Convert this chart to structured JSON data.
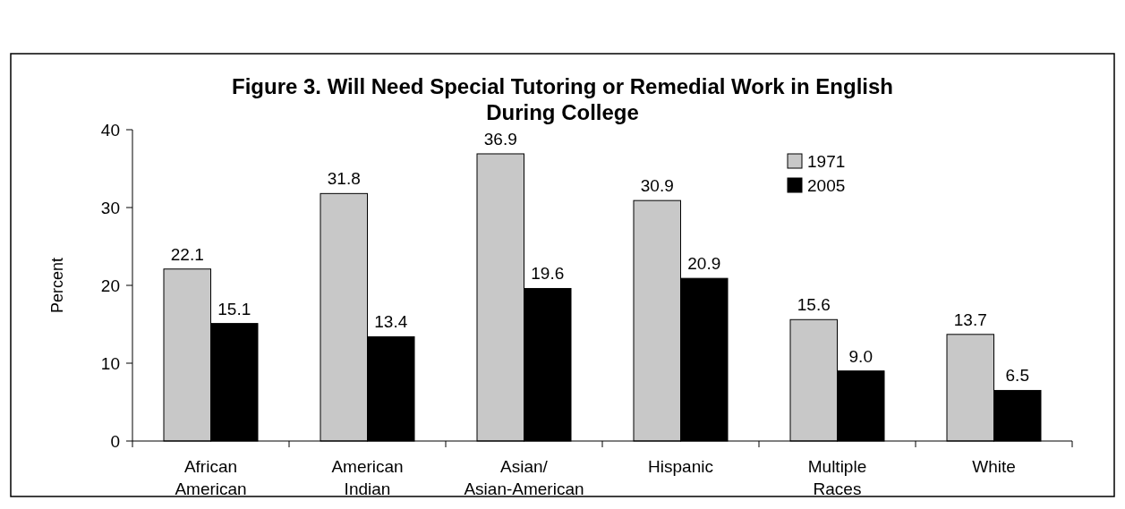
{
  "chart_data": {
    "type": "bar",
    "title": "Figure 3. Will Need Special Tutoring or Remedial Work in English During College",
    "ylabel": "Percent",
    "categories": [
      "African American",
      "American Indian",
      "Asian/Asian-American",
      "Hispanic",
      "Multiple Races",
      "White"
    ],
    "series": [
      {
        "name": "1971",
        "color": "#c8c8c8",
        "values": [
          22.1,
          31.8,
          36.9,
          30.9,
          15.6,
          13.7
        ],
        "value_labels": [
          "22.1",
          "31.8",
          "36.9",
          "30.9",
          "15.6",
          "13.7"
        ]
      },
      {
        "name": "2005",
        "color": "#000000",
        "values": [
          15.1,
          13.4,
          19.6,
          20.9,
          9.0,
          6.5
        ],
        "value_labels": [
          "15.1",
          "13.4",
          "19.6",
          "20.9",
          "9.0",
          "6.5"
        ]
      }
    ],
    "ylim": [
      0,
      40
    ],
    "yticks": [
      0,
      10,
      20,
      30,
      40
    ],
    "grid": false,
    "legend": "top right"
  }
}
